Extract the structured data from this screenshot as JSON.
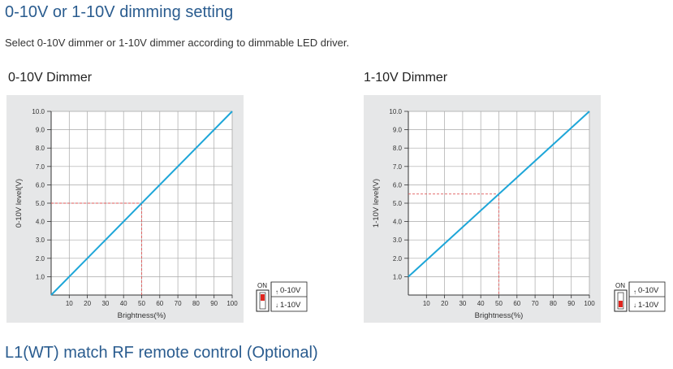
{
  "page": {
    "title": "0-10V or 1-10V dimming setting",
    "intro": "Select 0-10V dimmer or 1-10V dimmer according to dimmable LED driver.",
    "footer_heading": "L1(WT) match RF remote control (Optional)"
  },
  "colors": {
    "line": "#1ea6d8",
    "guide": "#e05a5a",
    "grid": "#a8a8a8",
    "panel": "#e6e7e8",
    "heading": "#2a5c8f"
  },
  "chart_data": [
    {
      "type": "line",
      "title": "0-10V Dimmer",
      "xlabel": "Brightness(%)",
      "ylabel": "0-10V level(V)",
      "xlim": [
        0,
        100
      ],
      "ylim": [
        0,
        10
      ],
      "grid": true,
      "x_ticks": [
        "10",
        "20",
        "30",
        "40",
        "50",
        "60",
        "70",
        "80",
        "90",
        "100"
      ],
      "y_ticks": [
        "1.0",
        "2.0",
        "3.0",
        "4.0",
        "5.0",
        "6.0",
        "7.0",
        "8.0",
        "9.0",
        "10.0"
      ],
      "series": [
        {
          "x": [
            0,
            100
          ],
          "y": [
            0,
            10
          ]
        }
      ],
      "guide_point": {
        "x": 50,
        "y": 5.0
      }
    },
    {
      "type": "line",
      "title": "1-10V Dimmer",
      "xlabel": "Brightness(%)",
      "ylabel": "1-10V level(V)",
      "xlim": [
        0,
        100
      ],
      "ylim": [
        0,
        10
      ],
      "grid": true,
      "x_ticks": [
        "10",
        "20",
        "30",
        "40",
        "50",
        "60",
        "70",
        "80",
        "90",
        "100"
      ],
      "y_ticks": [
        "1.0",
        "2.0",
        "3.0",
        "4.0",
        "5.0",
        "6.0",
        "7.0",
        "8.0",
        "9.0",
        "10.0"
      ],
      "series": [
        {
          "x": [
            0,
            100
          ],
          "y": [
            1,
            10
          ]
        }
      ],
      "guide_point": {
        "x": 50,
        "y": 5.5
      }
    }
  ],
  "switches": [
    {
      "on_label": "ON",
      "top_option": "0-10V",
      "bottom_option": "1-10V",
      "position": "top"
    },
    {
      "on_label": "ON",
      "top_option": "0-10V",
      "bottom_option": "1-10V",
      "position": "bottom"
    }
  ]
}
